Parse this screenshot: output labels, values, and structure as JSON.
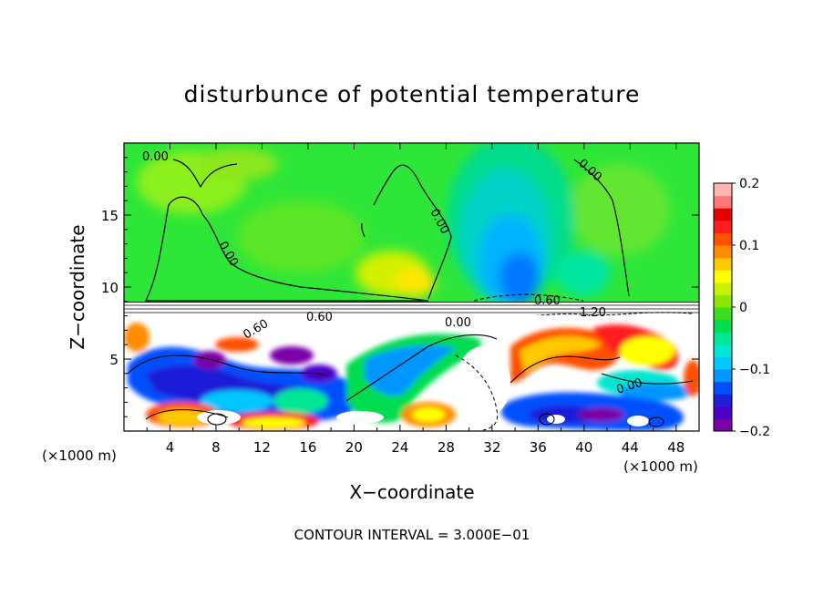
{
  "chart_data": {
    "type": "heatmap",
    "title": "disturbunce of potential temperature",
    "xlabel": "X−coordinate",
    "ylabel": "Z−coordinate",
    "x_unit_left": "(×1000 m)",
    "x_unit_right": "(×1000 m)",
    "x_ticks": [
      "4",
      "8",
      "12",
      "16",
      "20",
      "24",
      "28",
      "32",
      "36",
      "40",
      "44",
      "48"
    ],
    "x_tick_values": [
      4,
      8,
      12,
      16,
      20,
      24,
      28,
      32,
      36,
      40,
      44,
      48
    ],
    "y_ticks": [
      "5",
      "10",
      "15"
    ],
    "y_tick_values": [
      5,
      10,
      15
    ],
    "xlim": [
      0,
      50
    ],
    "ylim": [
      0,
      20
    ],
    "colorbar": {
      "labels": [
        "0.2",
        "0.1",
        "0",
        "−0.1",
        "−0.2"
      ],
      "values": [
        0.2,
        0.1,
        0,
        -0.1,
        -0.2
      ],
      "range": [
        -0.2,
        0.2
      ],
      "colors": [
        "#7a00a8",
        "#4b00c8",
        "#1f1fd8",
        "#0050ff",
        "#0096ff",
        "#00c8ff",
        "#00e6d2",
        "#00e696",
        "#00dc50",
        "#3cdc1e",
        "#8ce600",
        "#c8f000",
        "#ffff00",
        "#ffc800",
        "#ff8c00",
        "#ff5000",
        "#ff1e1e",
        "#e60000",
        "#ff7878",
        "#ffb4b4"
      ]
    },
    "contour_labels": [
      "0.00",
      "0.00",
      "0.00",
      "0.00",
      "0.60",
      "0.60",
      "1.20",
      "0.00",
      "0.60",
      "0.00"
    ],
    "annotation": "CONTOUR INTERVAL = 3.000E−01"
  }
}
